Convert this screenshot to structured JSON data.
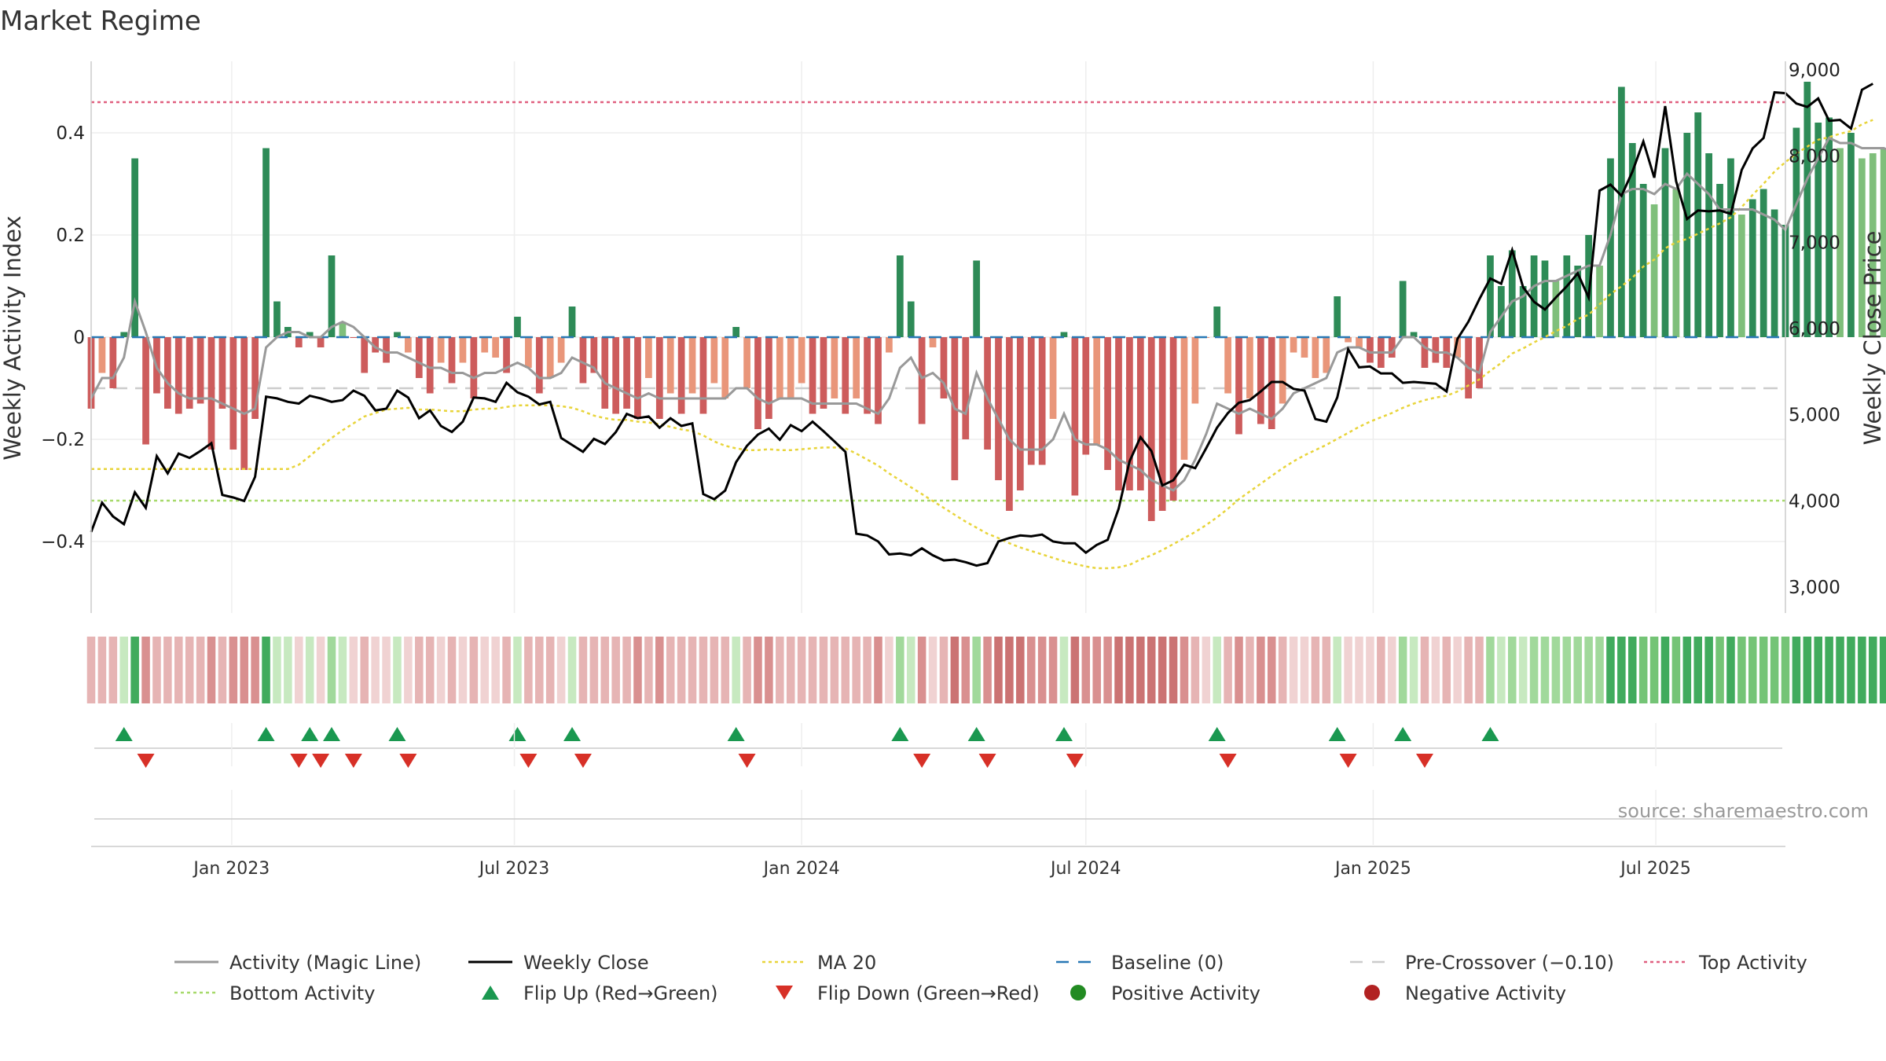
{
  "chart_data": {
    "type": "bar",
    "title": "Market Regime",
    "ylabel": "Weekly Activity Index",
    "y2label": "Weekly Close Price",
    "ylim": [
      -0.54,
      0.54
    ],
    "y2lim": [
      2700,
      9100
    ],
    "yticks": [
      -0.4,
      -0.2,
      0,
      0.2,
      0.4
    ],
    "ytick_labels": [
      "−0.4",
      "−0.2",
      "0",
      "0.2",
      "0.4"
    ],
    "y2ticks": [
      3000,
      4000,
      5000,
      6000,
      7000,
      8000,
      9000
    ],
    "y2tick_labels": [
      "3,000",
      "4,000",
      "5,000",
      "6,000",
      "7,000",
      "8,000",
      "9,000"
    ],
    "x_range": [
      "2022-10-03",
      "2025-09-22"
    ],
    "xticks": [
      "2023-01-01",
      "2023-07-01",
      "2024-01-01",
      "2024-07-01",
      "2025-01-01",
      "2025-07-01"
    ],
    "xtick_labels": [
      "Jan 2023",
      "Jul 2023",
      "Jan 2024",
      "Jul 2024",
      "Jan 2025",
      "Jul 2025"
    ],
    "reference_lines": {
      "top_activity": 0.46,
      "bottom_activity": -0.32,
      "pre_crossover": -0.1,
      "baseline": 0
    },
    "grid": true,
    "legend_position": "bottom",
    "source": "source: sharemaestro.com",
    "legend": [
      {
        "label": "Activity (Magic Line)",
        "kind": "line",
        "color": "#999999"
      },
      {
        "label": "Weekly Close",
        "kind": "line",
        "color": "#000000"
      },
      {
        "label": "MA 20",
        "kind": "dotted",
        "color": "#e8d43a"
      },
      {
        "label": "Baseline (0)",
        "kind": "dashed",
        "color": "#2878b5"
      },
      {
        "label": "Pre-Crossover (−0.10)",
        "kind": "dashed",
        "color": "#cccccc"
      },
      {
        "label": "Top Activity",
        "kind": "dotted",
        "color": "#e06080"
      },
      {
        "label": "Bottom Activity",
        "kind": "dotted",
        "color": "#a6d96a"
      },
      {
        "label": "Flip Up (Red→Green)",
        "kind": "triangle-up",
        "color": "#1a9850"
      },
      {
        "label": "Flip Down (Green→Red)",
        "kind": "triangle-down",
        "color": "#d73027"
      },
      {
        "label": "Positive Activity",
        "kind": "circle",
        "color": "#228b22"
      },
      {
        "label": "Negative Activity",
        "kind": "circle",
        "color": "#b22222"
      }
    ],
    "activity": [
      -0.14,
      -0.07,
      -0.1,
      0.01,
      0.35,
      -0.21,
      -0.11,
      -0.14,
      -0.15,
      -0.14,
      -0.13,
      -0.22,
      -0.14,
      -0.22,
      -0.26,
      -0.16,
      0.37,
      0.07,
      0.02,
      -0.02,
      0.01,
      -0.02,
      0.16,
      0.03,
      0,
      -0.07,
      -0.03,
      -0.05,
      0.01,
      -0.03,
      -0.08,
      -0.11,
      -0.05,
      -0.09,
      -0.05,
      -0.12,
      -0.03,
      -0.04,
      -0.07,
      0.04,
      -0.06,
      -0.11,
      -0.08,
      -0.05,
      0.06,
      -0.09,
      -0.07,
      -0.14,
      -0.15,
      -0.14,
      -0.16,
      -0.08,
      -0.16,
      -0.11,
      -0.15,
      -0.11,
      -0.15,
      -0.09,
      -0.12,
      0.02,
      -0.1,
      -0.18,
      -0.16,
      -0.12,
      -0.12,
      -0.09,
      -0.15,
      -0.14,
      -0.12,
      -0.15,
      -0.12,
      -0.15,
      -0.17,
      -0.03,
      0.16,
      0.07,
      -0.17,
      -0.02,
      -0.12,
      -0.28,
      -0.2,
      0.15,
      -0.22,
      -0.28,
      -0.34,
      -0.3,
      -0.25,
      -0.25,
      -0.16,
      0.01,
      -0.31,
      -0.23,
      -0.21,
      -0.26,
      -0.3,
      -0.3,
      -0.3,
      -0.36,
      -0.34,
      -0.32,
      -0.24,
      -0.13,
      0,
      0.06,
      -0.11,
      -0.19,
      -0.12,
      -0.17,
      -0.18,
      -0.13,
      -0.03,
      -0.04,
      -0.08,
      -0.07,
      0.08,
      -0.01,
      -0.02,
      -0.05,
      -0.06,
      -0.04,
      0.11,
      0.01,
      -0.06,
      -0.05,
      -0.06,
      -0.04,
      -0.12,
      -0.1,
      0.16,
      0.1,
      0.17,
      0.1,
      0.16,
      0.15,
      0.11,
      0.16,
      0.14,
      0.2,
      0.14,
      0.35,
      0.49,
      0.38,
      0.3,
      0.26,
      0.37,
      0.29,
      0.4,
      0.44,
      0.36,
      0.3,
      0.35,
      0.24,
      0.27,
      0.29,
      0.25,
      0.22,
      0.41,
      0.5,
      0.42,
      0.43,
      0.37,
      0.4,
      0.35,
      0.36,
      0.37,
      0.3,
      0.29,
      0.42,
      0.36
    ],
    "magic_line": [
      -0.12,
      -0.08,
      -0.08,
      -0.04,
      0.07,
      0.01,
      -0.06,
      -0.09,
      -0.11,
      -0.12,
      -0.12,
      -0.12,
      -0.13,
      -0.14,
      -0.15,
      -0.14,
      -0.02,
      0,
      0.01,
      0.01,
      0,
      0,
      0.02,
      0.03,
      0.02,
      0,
      -0.02,
      -0.03,
      -0.03,
      -0.04,
      -0.05,
      -0.06,
      -0.06,
      -0.07,
      -0.07,
      -0.08,
      -0.07,
      -0.07,
      -0.06,
      -0.05,
      -0.06,
      -0.08,
      -0.08,
      -0.07,
      -0.04,
      -0.05,
      -0.06,
      -0.09,
      -0.1,
      -0.11,
      -0.12,
      -0.11,
      -0.12,
      -0.12,
      -0.12,
      -0.12,
      -0.12,
      -0.12,
      -0.12,
      -0.1,
      -0.1,
      -0.12,
      -0.13,
      -0.12,
      -0.12,
      -0.12,
      -0.13,
      -0.13,
      -0.13,
      -0.13,
      -0.13,
      -0.14,
      -0.15,
      -0.12,
      -0.06,
      -0.04,
      -0.08,
      -0.07,
      -0.09,
      -0.14,
      -0.15,
      -0.07,
      -0.12,
      -0.16,
      -0.2,
      -0.22,
      -0.22,
      -0.22,
      -0.2,
      -0.15,
      -0.2,
      -0.21,
      -0.21,
      -0.22,
      -0.24,
      -0.25,
      -0.26,
      -0.28,
      -0.29,
      -0.3,
      -0.28,
      -0.24,
      -0.19,
      -0.13,
      -0.14,
      -0.15,
      -0.14,
      -0.15,
      -0.16,
      -0.14,
      -0.11,
      -0.1,
      -0.09,
      -0.08,
      -0.03,
      -0.02,
      -0.02,
      -0.03,
      -0.03,
      -0.03,
      0,
      0,
      -0.02,
      -0.03,
      -0.03,
      -0.04,
      -0.06,
      -0.07,
      0.01,
      0.04,
      0.07,
      0.08,
      0.1,
      0.11,
      0.11,
      0.12,
      0.13,
      0.14,
      0.14,
      0.2,
      0.28,
      0.29,
      0.29,
      0.28,
      0.3,
      0.29,
      0.32,
      0.3,
      0.28,
      0.25,
      0.25,
      0.25,
      0.25,
      0.24,
      0.23,
      0.21,
      0.26,
      0.31,
      0.35,
      0.39,
      0.38,
      0.38,
      0.37,
      0.37,
      0.37,
      0.36,
      0.35,
      0.37,
      0.36
    ],
    "weekly_close": [
      3640,
      3980,
      3820,
      3730,
      4100,
      3920,
      4520,
      4320,
      4550,
      4500,
      4580,
      4670,
      4070,
      4040,
      4000,
      4280,
      5210,
      5190,
      5150,
      5130,
      5220,
      5190,
      5150,
      5170,
      5280,
      5220,
      5050,
      5070,
      5280,
      5200,
      4960,
      5050,
      4870,
      4800,
      4920,
      5200,
      5190,
      5150,
      5370,
      5260,
      5210,
      5120,
      5150,
      4730,
      4650,
      4570,
      4720,
      4660,
      4800,
      5010,
      4960,
      4980,
      4850,
      4960,
      4870,
      4900,
      4080,
      4020,
      4120,
      4450,
      4640,
      4770,
      4840,
      4710,
      4880,
      4810,
      4920,
      4810,
      4690,
      4570,
      3620,
      3600,
      3530,
      3380,
      3390,
      3370,
      3450,
      3370,
      3310,
      3320,
      3290,
      3250,
      3280,
      3530,
      3570,
      3600,
      3590,
      3610,
      3530,
      3510,
      3510,
      3400,
      3490,
      3550,
      3910,
      4460,
      4740,
      4580,
      4180,
      4240,
      4420,
      4380,
      4610,
      4850,
      5020,
      5140,
      5170,
      5270,
      5380,
      5380,
      5300,
      5280,
      4950,
      4920,
      5200,
      5760,
      5550,
      5560,
      5480,
      5480,
      5370,
      5380,
      5370,
      5360,
      5270,
      5880,
      6080,
      6340,
      6580,
      6520,
      6910,
      6480,
      6310,
      6220,
      6360,
      6490,
      6640,
      6360,
      7600,
      7670,
      7540,
      7820,
      8170,
      7750,
      8580,
      7710,
      7270,
      7370,
      7360,
      7370,
      7330,
      7840,
      8090,
      8210,
      8740,
      8730,
      8610,
      8570,
      8670,
      8410,
      8420,
      8320,
      8770,
      8840
    ],
    "ma20": [
      4370,
      4370,
      4370,
      4370,
      4370,
      4370,
      4370,
      4370,
      4370,
      4370,
      4370,
      4370,
      4370,
      4370,
      4370,
      4370,
      4370,
      4370,
      4370,
      4420,
      4520,
      4630,
      4730,
      4820,
      4900,
      4980,
      5020,
      5060,
      5070,
      5080,
      5060,
      5060,
      5050,
      5040,
      5040,
      5060,
      5070,
      5070,
      5090,
      5110,
      5110,
      5110,
      5110,
      5100,
      5080,
      5040,
      4990,
      4960,
      4940,
      4940,
      4920,
      4910,
      4890,
      4860,
      4830,
      4810,
      4760,
      4690,
      4640,
      4610,
      4590,
      4590,
      4600,
      4590,
      4590,
      4600,
      4610,
      4620,
      4620,
      4610,
      4550,
      4480,
      4410,
      4320,
      4240,
      4160,
      4080,
      4000,
      3920,
      3840,
      3760,
      3690,
      3620,
      3570,
      3510,
      3460,
      3420,
      3380,
      3340,
      3300,
      3270,
      3240,
      3220,
      3220,
      3230,
      3260,
      3320,
      3370,
      3430,
      3500,
      3570,
      3640,
      3720,
      3810,
      3910,
      4020,
      4110,
      4200,
      4290,
      4380,
      4460,
      4530,
      4590,
      4650,
      4720,
      4790,
      4860,
      4920,
      4970,
      5020,
      5080,
      5130,
      5170,
      5200,
      5220,
      5270,
      5340,
      5410,
      5510,
      5600,
      5710,
      5770,
      5840,
      5900,
      5970,
      6030,
      6110,
      6160,
      6280,
      6400,
      6490,
      6590,
      6720,
      6800,
      6930,
      7000,
      7040,
      7100,
      7160,
      7220,
      7290,
      7410,
      7550,
      7680,
      7820,
      7930,
      8030,
      8110,
      8190,
      8220,
      8260,
      8290,
      8370,
      8420
    ]
  }
}
